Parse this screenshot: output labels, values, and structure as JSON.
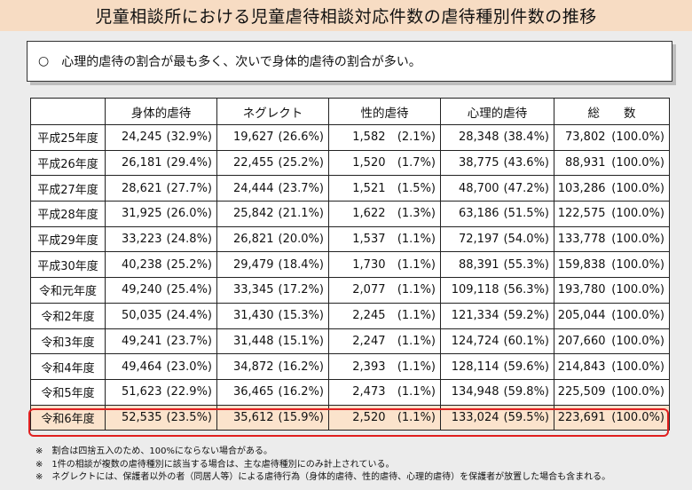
{
  "title": "児童相談所における児童虐待相談対応件数の虐待種別件数の推移",
  "summary": {
    "marker": "○",
    "text": "心理的虐待の割合が最も多く、次いで身体的虐待の割合が多い。"
  },
  "table": {
    "headers": [
      "身体的虐待",
      "ネグレクト",
      "性的虐待",
      "心理的虐待",
      "総　　数"
    ],
    "rows": [
      {
        "year": "平成25年度",
        "cells": [
          [
            "24,245",
            "(32.9%)"
          ],
          [
            "19,627",
            "(26.6%)"
          ],
          [
            "1,582",
            "(2.1%)"
          ],
          [
            "28,348",
            "(38.4%)"
          ],
          [
            "73,802",
            "(100.0%)"
          ]
        ]
      },
      {
        "year": "平成26年度",
        "cells": [
          [
            "26,181",
            "(29.4%)"
          ],
          [
            "22,455",
            "(25.2%)"
          ],
          [
            "1,520",
            "(1.7%)"
          ],
          [
            "38,775",
            "(43.6%)"
          ],
          [
            "88,931",
            "(100.0%)"
          ]
        ]
      },
      {
        "year": "平成27年度",
        "cells": [
          [
            "28,621",
            "(27.7%)"
          ],
          [
            "24,444",
            "(23.7%)"
          ],
          [
            "1,521",
            "(1.5%)"
          ],
          [
            "48,700",
            "(47.2%)"
          ],
          [
            "103,286",
            "(100.0%)"
          ]
        ]
      },
      {
        "year": "平成28年度",
        "cells": [
          [
            "31,925",
            "(26.0%)"
          ],
          [
            "25,842",
            "(21.1%)"
          ],
          [
            "1,622",
            "(1.3%)"
          ],
          [
            "63,186",
            "(51.5%)"
          ],
          [
            "122,575",
            "(100.0%)"
          ]
        ]
      },
      {
        "year": "平成29年度",
        "cells": [
          [
            "33,223",
            "(24.8%)"
          ],
          [
            "26,821",
            "(20.0%)"
          ],
          [
            "1,537",
            "(1.1%)"
          ],
          [
            "72,197",
            "(54.0%)"
          ],
          [
            "133,778",
            "(100.0%)"
          ]
        ]
      },
      {
        "year": "平成30年度",
        "cells": [
          [
            "40,238",
            "(25.2%)"
          ],
          [
            "29,479",
            "(18.4%)"
          ],
          [
            "1,730",
            "(1.1%)"
          ],
          [
            "88,391",
            "(55.3%)"
          ],
          [
            "159,838",
            "(100.0%)"
          ]
        ]
      },
      {
        "year": "令和元年度",
        "cells": [
          [
            "49,240",
            "(25.4%)"
          ],
          [
            "33,345",
            "(17.2%)"
          ],
          [
            "2,077",
            "(1.1%)"
          ],
          [
            "109,118",
            "(56.3%)"
          ],
          [
            "193,780",
            "(100.0%)"
          ]
        ]
      },
      {
        "year": "令和2年度",
        "cells": [
          [
            "50,035",
            "(24.4%)"
          ],
          [
            "31,430",
            "(15.3%)"
          ],
          [
            "2,245",
            "(1.1%)"
          ],
          [
            "121,334",
            "(59.2%)"
          ],
          [
            "205,044",
            "(100.0%)"
          ]
        ]
      },
      {
        "year": "令和3年度",
        "cells": [
          [
            "49,241",
            "(23.7%)"
          ],
          [
            "31,448",
            "(15.1%)"
          ],
          [
            "2,247",
            "(1.1%)"
          ],
          [
            "124,724",
            "(60.1%)"
          ],
          [
            "207,660",
            "(100.0%)"
          ]
        ]
      },
      {
        "year": "令和4年度",
        "cells": [
          [
            "49,464",
            "(23.0%)"
          ],
          [
            "34,872",
            "(16.2%)"
          ],
          [
            "2,393",
            "(1.1%)"
          ],
          [
            "128,114",
            "(59.6%)"
          ],
          [
            "214,843",
            "(100.0%)"
          ]
        ]
      },
      {
        "year": "令和5年度",
        "cells": [
          [
            "51,623",
            "(22.9%)"
          ],
          [
            "36,465",
            "(16.2%)"
          ],
          [
            "2,473",
            "(1.1%)"
          ],
          [
            "134,948",
            "(59.8%)"
          ],
          [
            "225,509",
            "(100.0%)"
          ]
        ]
      },
      {
        "year": "令和6年度",
        "highlight": true,
        "cells": [
          [
            "52,535",
            "(23.5%)"
          ],
          [
            "35,612",
            "(15.9%)"
          ],
          [
            "2,520",
            "(1.1%)"
          ],
          [
            "133,024",
            "(59.5%)"
          ],
          [
            "223,691",
            "(100.0%)"
          ]
        ]
      }
    ]
  },
  "notes": [
    "※　割合は四捨五入のため、100%にならない場合がある。",
    "※　1件の相談が複数の虐待種別に該当する場合は、主な虐待種別にのみ計上されている。",
    "※　ネグレクトには、保護者以外の者（同居人等）による虐待行為（身体的虐待、性的虐待、心理的虐待）を保護者が放置した場合も含まれる。"
  ],
  "colors": {
    "title_bg": "#f7dcc3",
    "highlight_row": "#fbe3cc",
    "highlight_border": "#e02020"
  }
}
